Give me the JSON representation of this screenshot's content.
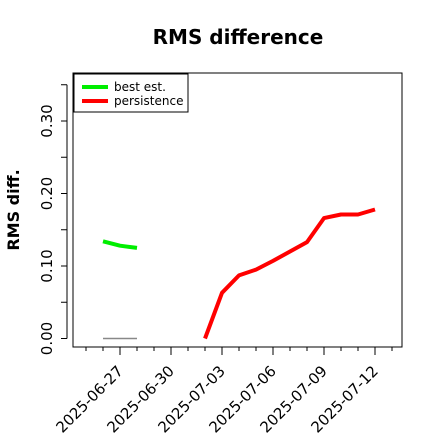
{
  "chart_data": {
    "type": "line",
    "title": "RMS difference",
    "xlabel": "",
    "ylabel": "RMS diff.",
    "xlim": [
      "2025-06-24",
      "2025-07-14"
    ],
    "ylim": [
      0.0,
      0.3
    ],
    "x_ticks": [
      "2025-06-27",
      "2025-06-30",
      "2025-07-03",
      "2025-07-06",
      "2025-07-09",
      "2025-07-12"
    ],
    "y_ticks": [
      "0.00",
      "0.10",
      "0.20",
      "0.30"
    ],
    "grid": false,
    "legend_position": "top-left",
    "series": [
      {
        "name": "best est.",
        "color": "#00ee00",
        "points": [
          {
            "x": "2025-06-26",
            "y": 0.134
          },
          {
            "x": "2025-06-27",
            "y": 0.128
          },
          {
            "x": "2025-06-28",
            "y": 0.125
          }
        ]
      },
      {
        "name": "persistence",
        "color": "#ff0000",
        "points": [
          {
            "x": "2025-07-02",
            "y": 0.0
          },
          {
            "x": "2025-07-03",
            "y": 0.063
          },
          {
            "x": "2025-07-04",
            "y": 0.087
          },
          {
            "x": "2025-07-05",
            "y": 0.095
          },
          {
            "x": "2025-07-06",
            "y": 0.107
          },
          {
            "x": "2025-07-07",
            "y": 0.12
          },
          {
            "x": "2025-07-08",
            "y": 0.133
          },
          {
            "x": "2025-07-09",
            "y": 0.166
          },
          {
            "x": "2025-07-10",
            "y": 0.171
          },
          {
            "x": "2025-07-11",
            "y": 0.171
          },
          {
            "x": "2025-07-12",
            "y": 0.178
          }
        ]
      },
      {
        "name": "",
        "color": "#888888",
        "points": [
          {
            "x": "2025-06-26",
            "y": 0.0
          },
          {
            "x": "2025-06-28",
            "y": 0.0
          }
        ]
      }
    ]
  }
}
